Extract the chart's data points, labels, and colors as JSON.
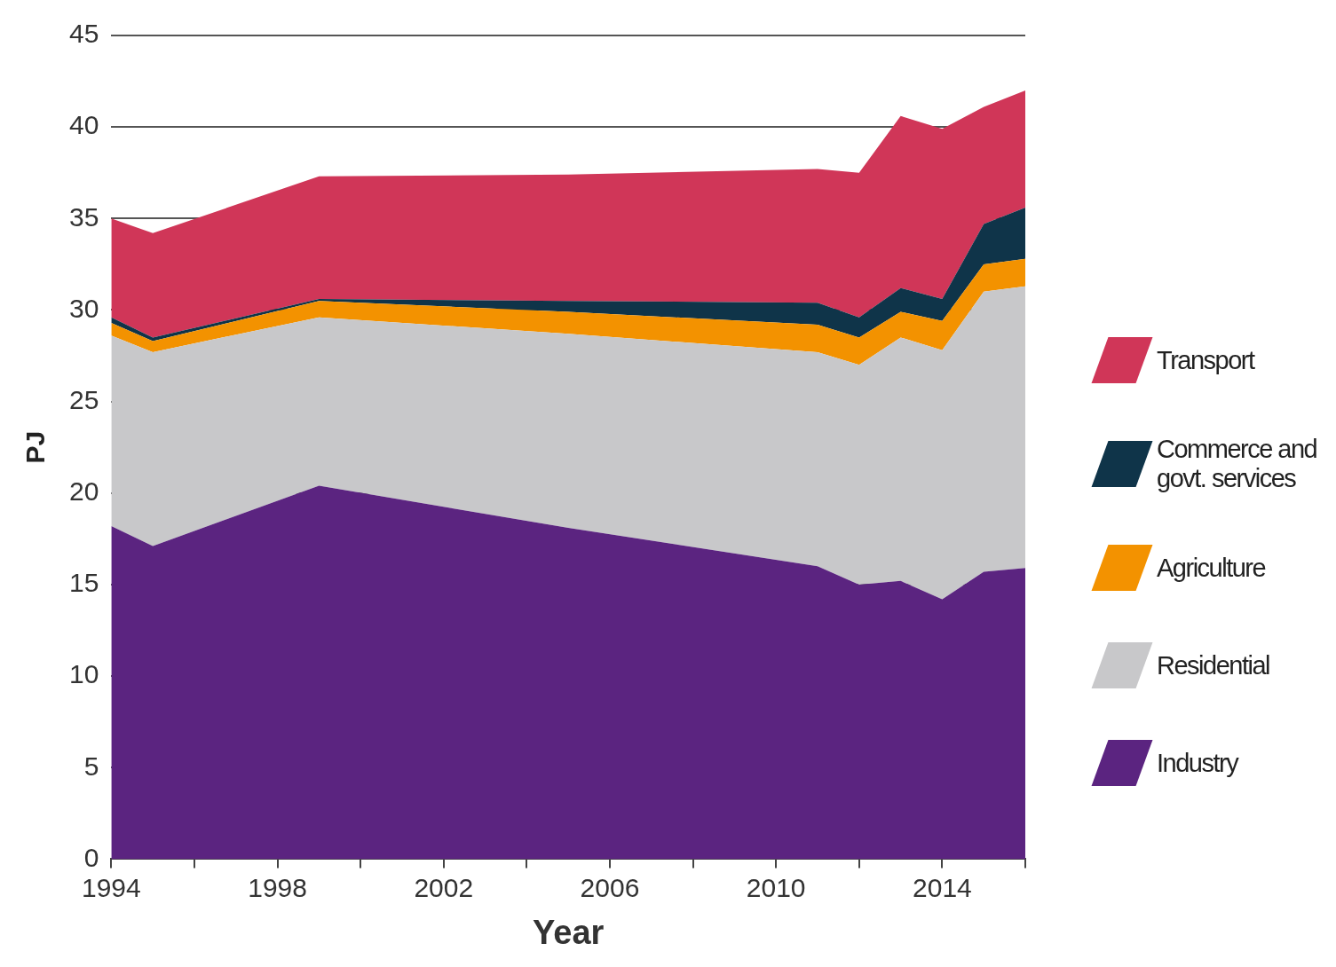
{
  "chart_data": {
    "type": "area",
    "stacked": true,
    "xlabel": "Year",
    "ylabel": "PJ",
    "x": [
      1994,
      1995,
      1999,
      2005,
      2011,
      2012,
      2013,
      2014,
      2015,
      2016
    ],
    "series": [
      {
        "name": "Industry",
        "color": "#5b2480",
        "values": [
          18.2,
          17.1,
          20.4,
          18.1,
          16.0,
          15.0,
          15.2,
          14.2,
          15.7,
          15.9
        ]
      },
      {
        "name": "Residential",
        "color": "#c8c8ca",
        "values": [
          10.4,
          10.6,
          9.2,
          10.6,
          11.7,
          12.0,
          13.3,
          13.6,
          15.3,
          15.4
        ]
      },
      {
        "name": "Agriculture",
        "color": "#f39200",
        "values": [
          0.7,
          0.6,
          0.9,
          1.2,
          1.5,
          1.5,
          1.4,
          1.6,
          1.5,
          1.5
        ]
      },
      {
        "name": "Commerce and govt. services",
        "color": "#0f3449",
        "values": [
          0.3,
          0.2,
          0.1,
          0.6,
          1.2,
          1.1,
          1.3,
          1.2,
          2.2,
          2.8
        ]
      },
      {
        "name": "Transport",
        "color": "#d03658",
        "values": [
          5.4,
          5.7,
          6.7,
          6.9,
          7.3,
          7.9,
          9.4,
          9.3,
          6.4,
          6.4
        ]
      }
    ],
    "xlim": [
      1994,
      2016
    ],
    "xticks": [
      1994,
      {
        "value": 1996,
        "label": null
      },
      1998,
      {
        "value": 2000,
        "label": null
      },
      2002,
      {
        "value": 2004,
        "label": null
      },
      2006,
      {
        "value": 2008,
        "label": null
      },
      2010,
      {
        "value": 2012,
        "label": null
      },
      2014,
      {
        "value": 2016,
        "label": null
      }
    ],
    "ylim": [
      0,
      45
    ],
    "yticks": [
      0,
      5,
      10,
      15,
      20,
      25,
      30,
      35,
      40,
      45
    ],
    "grid": "y",
    "legend": "right",
    "marker": "none"
  }
}
